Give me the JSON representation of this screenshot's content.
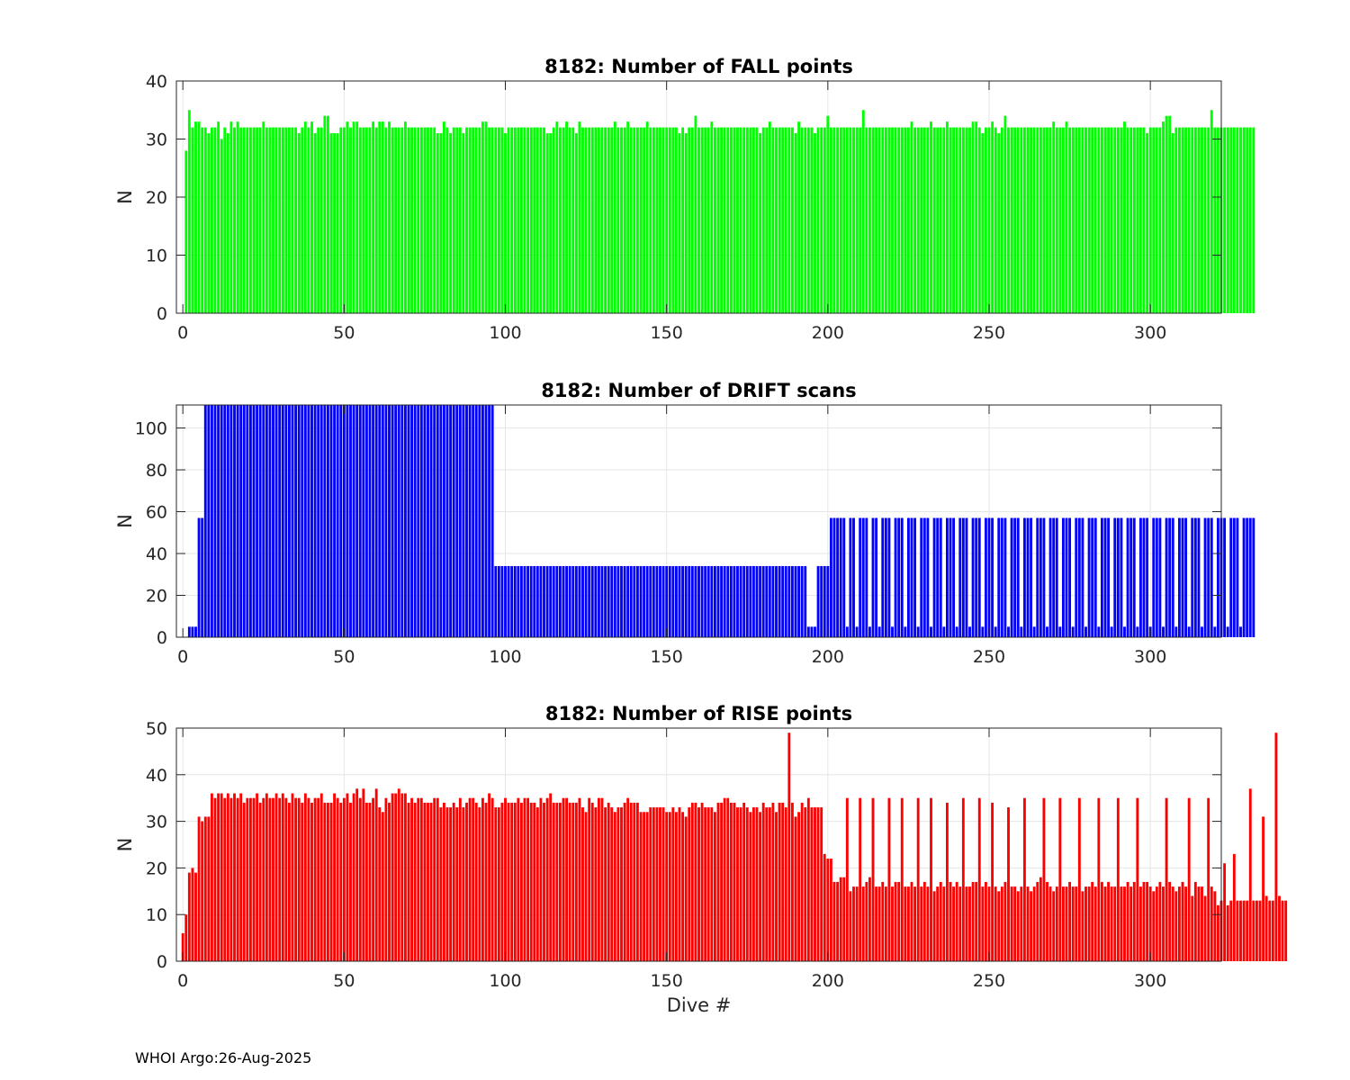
{
  "footer": "WHOI Argo:26-Aug-2025",
  "chart_data": [
    {
      "type": "bar",
      "title": "8182: Number of FALL points",
      "xlabel": "",
      "ylabel": "N",
      "xlim": [
        -2,
        322
      ],
      "ylim": [
        0,
        40
      ],
      "xticks": [
        0,
        50,
        100,
        150,
        200,
        250,
        300
      ],
      "yticks": [
        0,
        10,
        20,
        30,
        40
      ],
      "color": "#00ff00",
      "series": [
        {
          "name": "FALL points",
          "values": [
            0,
            28,
            35,
            32,
            33,
            33,
            32,
            32,
            31,
            32,
            32,
            33,
            30,
            32,
            31,
            33,
            32,
            33,
            32,
            32,
            32,
            32,
            32,
            32,
            32,
            33,
            32,
            32,
            32,
            32,
            32,
            32,
            32,
            32,
            32,
            32,
            31,
            32,
            33,
            32,
            33,
            31,
            32,
            32,
            34,
            34,
            31,
            31,
            31,
            32,
            32,
            33,
            32,
            33,
            33,
            32,
            32,
            32,
            32,
            33,
            32,
            33,
            33,
            32,
            33,
            32,
            32,
            32,
            32,
            33,
            32,
            32,
            32,
            32,
            32,
            32,
            32,
            32,
            32,
            31,
            31,
            33,
            32,
            31,
            32,
            32,
            32,
            31,
            32,
            32,
            32,
            32,
            32,
            33,
            33,
            32,
            32,
            32,
            32,
            32,
            31,
            32,
            32,
            32,
            32,
            32,
            32,
            32,
            32,
            32,
            32,
            32,
            32,
            31,
            31,
            32,
            33,
            32,
            32,
            33,
            32,
            32,
            31,
            33,
            32,
            32,
            32,
            32,
            32,
            32,
            32,
            32,
            32,
            32,
            33,
            32,
            32,
            32,
            33,
            32,
            32,
            32,
            32,
            32,
            33,
            32,
            32,
            32,
            32,
            32,
            32,
            32,
            32,
            32,
            31,
            32,
            31,
            32,
            32,
            34,
            32,
            32,
            32,
            32,
            33,
            32,
            32,
            32,
            32,
            32,
            32,
            32,
            32,
            32,
            32,
            32,
            32,
            32,
            32,
            31,
            32,
            32,
            33,
            32,
            32,
            32,
            32,
            32,
            32,
            32,
            31,
            33,
            32,
            32,
            32,
            32,
            31,
            32,
            32,
            32,
            34,
            32,
            32,
            32,
            32,
            32,
            32,
            32,
            32,
            32,
            32,
            35,
            32,
            32,
            32,
            32,
            32,
            32,
            32,
            32,
            32,
            32,
            32,
            32,
            32,
            32,
            33,
            32,
            32,
            32,
            32,
            32,
            33,
            32,
            32,
            32,
            32,
            33,
            32,
            32,
            32,
            32,
            32,
            32,
            32,
            33,
            33,
            32,
            31,
            32,
            32,
            33,
            32,
            31,
            32,
            34,
            32,
            32,
            32,
            32,
            32,
            32,
            32,
            32,
            32,
            32,
            32,
            32,
            32,
            32,
            33,
            32,
            32,
            32,
            33,
            32,
            32,
            32,
            32,
            32,
            32,
            32,
            32,
            32,
            32,
            32,
            32,
            32,
            32,
            32,
            32,
            32,
            33,
            32,
            32,
            32,
            32,
            32,
            32,
            31,
            32,
            32,
            32,
            32,
            33,
            34,
            34,
            31,
            32,
            32,
            32,
            32,
            32,
            32,
            32,
            32,
            32,
            32,
            32,
            35,
            32,
            32,
            32,
            32,
            32,
            32,
            32,
            32,
            32,
            32,
            32,
            32,
            32
          ]
        }
      ]
    },
    {
      "type": "bar",
      "title": "8182: Number of DRIFT scans",
      "xlabel": "",
      "ylabel": "N",
      "xlim": [
        -2,
        322
      ],
      "ylim": [
        0,
        111
      ],
      "xticks": [
        0,
        50,
        100,
        150,
        200,
        250,
        300
      ],
      "yticks": [
        0,
        20,
        40,
        60,
        80,
        100
      ],
      "color": "#0000ff",
      "series": [
        {
          "name": "DRIFT scans",
          "values": [
            0,
            0,
            5,
            5,
            5,
            57,
            57,
            111,
            111,
            111,
            111,
            111,
            111,
            111,
            111,
            111,
            111,
            111,
            111,
            111,
            111,
            111,
            111,
            111,
            111,
            111,
            111,
            111,
            111,
            111,
            111,
            111,
            111,
            111,
            111,
            111,
            111,
            111,
            111,
            111,
            111,
            111,
            111,
            111,
            111,
            111,
            111,
            111,
            111,
            111,
            111,
            111,
            111,
            111,
            111,
            111,
            111,
            111,
            111,
            111,
            111,
            111,
            111,
            111,
            111,
            111,
            111,
            111,
            111,
            111,
            111,
            111,
            111,
            111,
            111,
            111,
            111,
            111,
            111,
            111,
            111,
            111,
            111,
            111,
            111,
            111,
            111,
            111,
            111,
            111,
            111,
            111,
            111,
            111,
            111,
            111,
            111,
            34,
            34,
            34,
            34,
            34,
            34,
            34,
            34,
            34,
            34,
            34,
            34,
            34,
            34,
            34,
            34,
            34,
            34,
            34,
            34,
            34,
            34,
            34,
            34,
            34,
            34,
            34,
            34,
            34,
            34,
            34,
            34,
            34,
            34,
            34,
            34,
            34,
            34,
            34,
            34,
            34,
            34,
            34,
            34,
            34,
            34,
            34,
            34,
            34,
            34,
            34,
            34,
            34,
            34,
            34,
            34,
            34,
            34,
            34,
            34,
            34,
            34,
            34,
            34,
            34,
            34,
            34,
            34,
            34,
            34,
            34,
            34,
            34,
            34,
            34,
            34,
            34,
            34,
            34,
            34,
            34,
            34,
            34,
            34,
            34,
            34,
            34,
            34,
            34,
            34,
            34,
            34,
            34,
            34,
            34,
            34,
            34,
            5,
            5,
            5,
            34,
            34,
            34,
            34,
            57,
            57,
            57,
            57,
            57,
            5,
            57,
            57,
            5,
            57,
            57,
            57,
            5,
            57,
            57,
            5,
            57,
            57,
            57,
            5,
            57,
            57,
            57,
            5,
            57,
            57,
            57,
            5,
            57,
            57,
            57,
            5,
            57,
            57,
            57,
            5,
            57,
            57,
            57,
            5,
            57,
            57,
            57,
            5,
            57,
            57,
            57,
            5,
            57,
            57,
            57,
            5,
            57,
            57,
            57,
            5,
            57,
            57,
            57,
            5,
            57,
            57,
            57,
            5,
            57,
            57,
            57,
            5,
            57,
            57,
            57,
            5,
            57,
            57,
            57,
            5,
            57,
            57,
            57,
            5,
            57,
            57,
            57,
            5,
            57,
            57,
            57,
            5,
            57,
            57,
            57,
            5,
            57,
            57,
            57,
            5,
            57,
            57,
            57,
            5,
            57,
            57,
            57,
            5,
            57,
            57,
            57,
            5,
            57,
            57,
            57,
            5,
            57,
            57,
            57,
            5,
            57,
            57,
            57,
            5,
            57,
            57,
            57,
            5,
            57,
            57,
            57,
            5,
            57,
            57,
            57,
            57
          ]
        }
      ]
    },
    {
      "type": "bar",
      "title": "8182: Number of RISE points",
      "xlabel": "Dive #",
      "ylabel": "N",
      "xlim": [
        -2,
        322
      ],
      "ylim": [
        0,
        50
      ],
      "xticks": [
        0,
        50,
        100,
        150,
        200,
        250,
        300
      ],
      "yticks": [
        0,
        10,
        20,
        30,
        40,
        50
      ],
      "color": "#ff0000",
      "series": [
        {
          "name": "RISE points",
          "values": [
            6,
            10,
            19,
            20,
            19,
            31,
            30,
            31,
            31,
            36,
            35,
            36,
            36,
            35,
            36,
            35,
            36,
            35,
            36,
            34,
            35,
            35,
            35,
            36,
            34,
            35,
            36,
            35,
            35,
            36,
            35,
            36,
            35,
            34,
            36,
            35,
            35,
            34,
            36,
            35,
            34,
            35,
            35,
            36,
            34,
            34,
            34,
            36,
            35,
            34,
            35,
            36,
            34,
            36,
            37,
            35,
            37,
            34,
            34,
            35,
            37,
            33,
            32,
            35,
            34,
            36,
            36,
            37,
            36,
            36,
            34,
            35,
            34,
            35,
            35,
            34,
            34,
            34,
            35,
            35,
            33,
            34,
            33,
            33,
            34,
            33,
            35,
            33,
            34,
            35,
            35,
            34,
            33,
            35,
            34,
            36,
            35,
            33,
            33,
            34,
            35,
            34,
            34,
            34,
            35,
            34,
            35,
            35,
            34,
            34,
            33,
            35,
            34,
            35,
            36,
            34,
            34,
            34,
            35,
            35,
            34,
            34,
            34,
            35,
            33,
            32,
            35,
            34,
            33,
            35,
            35,
            33,
            34,
            33,
            32,
            33,
            33,
            34,
            35,
            34,
            34,
            34,
            32,
            32,
            32,
            33,
            33,
            33,
            33,
            33,
            32,
            32,
            33,
            32,
            33,
            32,
            31,
            33,
            34,
            34,
            33,
            34,
            33,
            33,
            33,
            32,
            34,
            34,
            35,
            35,
            34,
            34,
            33,
            33,
            34,
            33,
            32,
            33,
            33,
            32,
            34,
            33,
            33,
            34,
            32,
            34,
            34,
            33,
            49,
            34,
            31,
            32,
            34,
            33,
            35,
            33,
            33,
            33,
            33,
            23,
            22,
            22,
            17,
            17,
            18,
            18,
            35,
            15,
            16,
            16,
            35,
            16,
            17,
            18,
            35,
            16,
            16,
            17,
            16,
            35,
            16,
            17,
            17,
            35,
            16,
            16,
            17,
            16,
            35,
            16,
            17,
            16,
            35,
            15,
            16,
            17,
            16,
            34,
            17,
            16,
            17,
            16,
            35,
            16,
            16,
            17,
            17,
            35,
            16,
            17,
            16,
            34,
            16,
            15,
            16,
            17,
            33,
            16,
            16,
            15,
            16,
            35,
            16,
            15,
            16,
            17,
            18,
            35,
            17,
            16,
            15,
            16,
            35,
            16,
            16,
            17,
            16,
            16,
            35,
            15,
            16,
            16,
            17,
            16,
            35,
            17,
            16,
            17,
            16,
            16,
            35,
            16,
            16,
            17,
            16,
            17,
            35,
            16,
            17,
            17,
            16,
            15,
            16,
            17,
            16,
            35,
            17,
            16,
            15,
            16,
            17,
            16,
            35,
            14,
            17,
            16,
            16,
            14,
            35,
            16,
            15,
            12,
            13,
            21,
            12,
            13,
            23,
            13,
            13,
            13,
            13,
            37,
            13,
            13,
            13,
            31,
            14,
            13,
            13,
            49,
            14,
            13,
            13
          ]
        }
      ]
    }
  ]
}
